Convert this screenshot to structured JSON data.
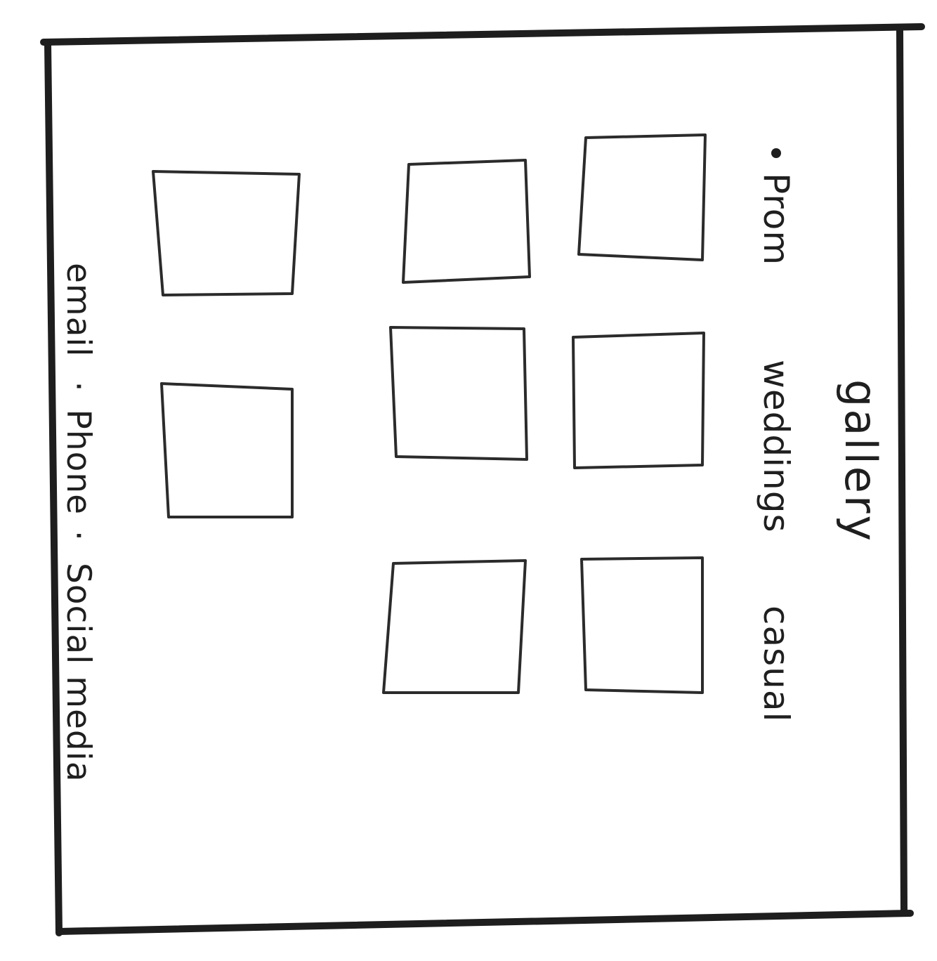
{
  "header": {
    "title": "gallery"
  },
  "nav": {
    "items": [
      {
        "label": "Prom"
      },
      {
        "label": "weddings"
      },
      {
        "label": "casual"
      }
    ]
  },
  "gallery": {
    "columns": 3,
    "rows": 3,
    "thumbnail_count": 8
  },
  "footer": {
    "email_label": "email",
    "separator": "·",
    "phone_label": "Phone",
    "social_label": "Social media"
  }
}
